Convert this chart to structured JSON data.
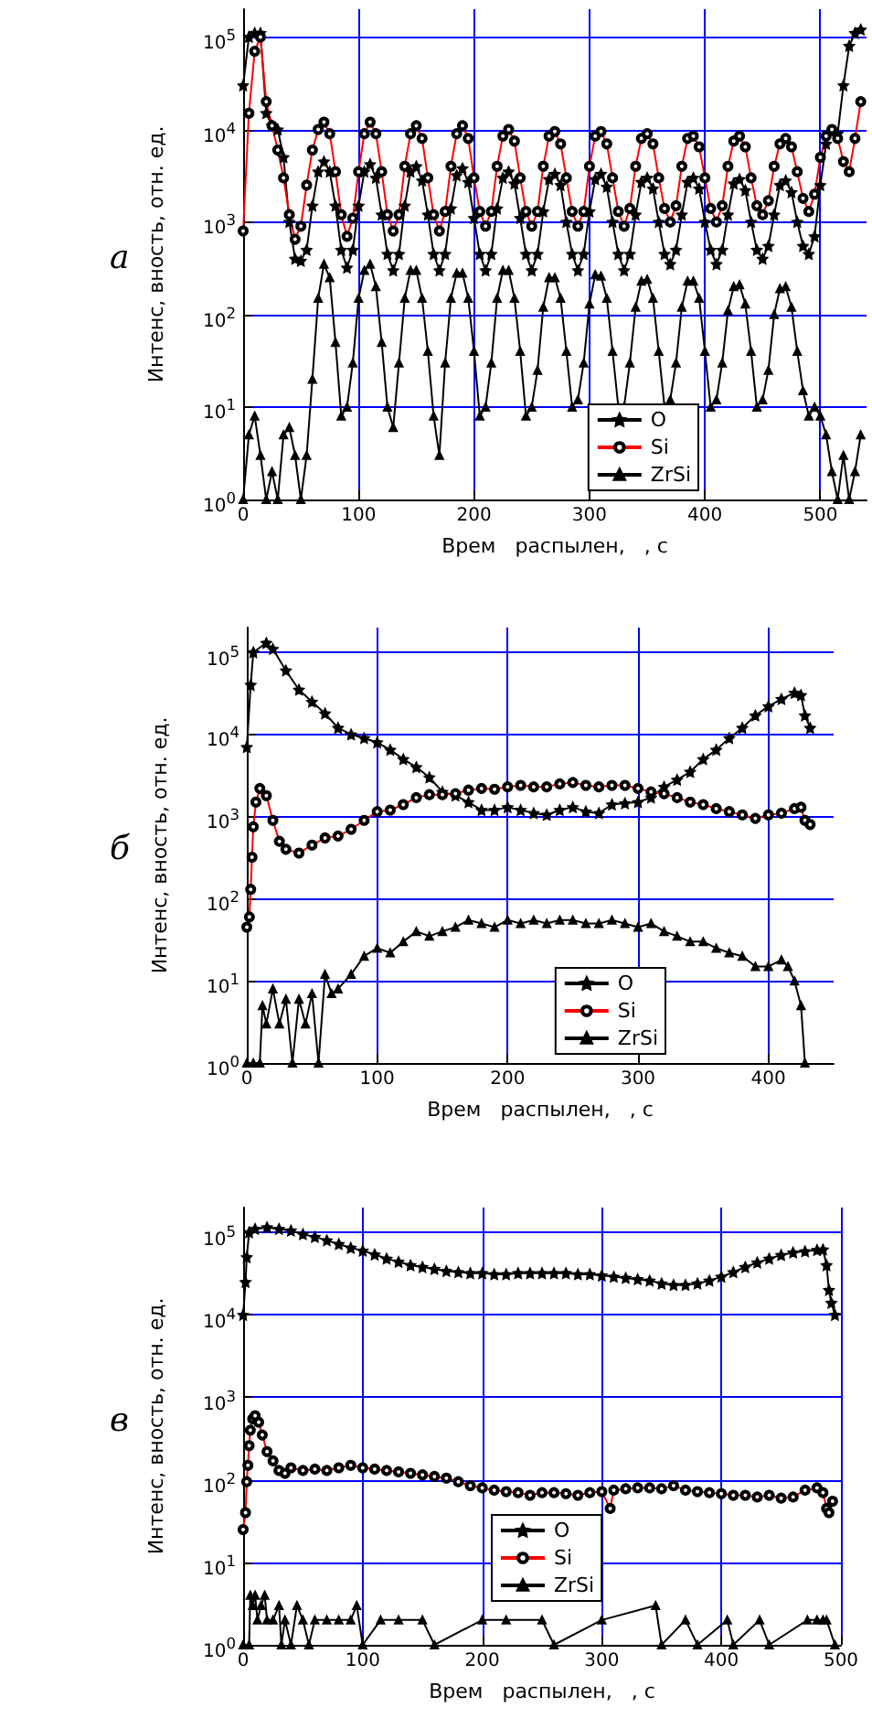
{
  "chart_data": [
    {
      "type": "line",
      "title": "а",
      "xlabel": "Врем   распылен,   , с",
      "ylabel": "Интенс, вность, отн. ед.",
      "log": "y",
      "grid": true,
      "legend": "bottom right",
      "xlim": [
        0,
        540
      ],
      "xticks": [
        0,
        100,
        200,
        300,
        400,
        500
      ],
      "ylim": [
        1,
        200000
      ],
      "yticks": [
        {
          "value": 1,
          "label": "10$^{0}$"
        },
        {
          "value": 10,
          "label": "10$^{1}$"
        },
        {
          "value": 100,
          "label": "10$^{2}$"
        },
        {
          "value": 1000,
          "label": "10$^{3}$"
        },
        {
          "value": 10000,
          "label": "10$^{4}$"
        },
        {
          "value": 100000,
          "label": "10$^{5}$"
        }
      ],
      "x": [
        0,
        5,
        10,
        15,
        20,
        25,
        30,
        35,
        40,
        45,
        50,
        55,
        60,
        65,
        70,
        75,
        80,
        85,
        90,
        95,
        100,
        105,
        110,
        115,
        120,
        125,
        130,
        135,
        140,
        145,
        150,
        155,
        160,
        165,
        170,
        175,
        180,
        185,
        190,
        195,
        200,
        205,
        210,
        215,
        220,
        225,
        230,
        235,
        240,
        245,
        250,
        255,
        260,
        265,
        270,
        275,
        280,
        285,
        290,
        295,
        300,
        305,
        310,
        315,
        320,
        325,
        330,
        335,
        340,
        345,
        350,
        355,
        360,
        365,
        370,
        375,
        380,
        385,
        390,
        395,
        400,
        405,
        410,
        415,
        420,
        425,
        430,
        435,
        440,
        445,
        450,
        455,
        460,
        465,
        470,
        475,
        480,
        485,
        490,
        495,
        500,
        505,
        510,
        515,
        520,
        525,
        530,
        535
      ],
      "series": [
        {
          "name": "O",
          "color": "#000000",
          "marker": "star",
          "values": [
            30000,
            100000,
            110000,
            110000,
            15000,
            11000,
            10000,
            5000,
            1000,
            400,
            380,
            500,
            1500,
            3500,
            4500,
            3500,
            1500,
            500,
            320,
            500,
            1500,
            3500,
            4200,
            3000,
            1200,
            450,
            300,
            450,
            1500,
            3500,
            4000,
            2800,
            1200,
            450,
            300,
            450,
            1400,
            3200,
            3800,
            2700,
            1100,
            450,
            300,
            450,
            1400,
            3000,
            3500,
            2600,
            1100,
            450,
            300,
            450,
            1300,
            2900,
            3300,
            2500,
            1000,
            450,
            300,
            450,
            1300,
            2900,
            3300,
            2400,
            1000,
            450,
            300,
            450,
            1200,
            2700,
            3000,
            2300,
            1000,
            450,
            350,
            500,
            1200,
            2700,
            3000,
            2300,
            1000,
            500,
            350,
            500,
            1200,
            2600,
            2900,
            2200,
            1000,
            500,
            400,
            550,
            1200,
            2500,
            2800,
            2100,
            1000,
            550,
            450,
            700,
            2500,
            7000,
            9500,
            9000,
            30000,
            80000,
            110000,
            120000
          ]
        },
        {
          "name": "Si",
          "color": "#ff0000",
          "marker": "circle",
          "values": [
            800,
            15000,
            70000,
            100000,
            20000,
            11000,
            6000,
            3000,
            1200,
            650,
            900,
            2500,
            6000,
            10000,
            12000,
            9000,
            3500,
            1200,
            700,
            1100,
            3500,
            9000,
            12000,
            9000,
            3500,
            1200,
            800,
            1200,
            4000,
            9000,
            11000,
            8000,
            3000,
            1200,
            800,
            1300,
            4000,
            9000,
            11000,
            8000,
            3000,
            1300,
            900,
            1300,
            4000,
            8500,
            10000,
            7500,
            3000,
            1300,
            900,
            1300,
            4000,
            8500,
            9500,
            7000,
            3000,
            1300,
            900,
            1300,
            4000,
            8500,
            9500,
            7000,
            3000,
            1300,
            900,
            1400,
            4000,
            8000,
            9000,
            7000,
            3000,
            1400,
            1000,
            1500,
            4000,
            8000,
            8500,
            6500,
            3000,
            1400,
            1000,
            1500,
            4000,
            7500,
            8500,
            6500,
            3000,
            1500,
            1200,
            1700,
            4000,
            7000,
            8000,
            6500,
            3500,
            1800,
            1300,
            2000,
            5000,
            8500,
            10000,
            8000,
            4500,
            3500,
            8000,
            20000
          ]
        },
        {
          "name": "ZrSi",
          "color": "#000000",
          "marker": "triangle",
          "values": [
            1,
            5,
            8,
            3,
            1,
            2,
            1,
            5,
            6,
            3,
            1,
            3,
            20,
            150,
            350,
            250,
            50,
            8,
            10,
            30,
            150,
            300,
            350,
            200,
            50,
            10,
            6,
            30,
            150,
            300,
            300,
            150,
            40,
            8,
            3,
            30,
            150,
            280,
            280,
            150,
            40,
            8,
            10,
            30,
            150,
            300,
            300,
            150,
            40,
            8,
            10,
            25,
            120,
            250,
            250,
            150,
            40,
            10,
            12,
            30,
            130,
            270,
            260,
            150,
            40,
            10,
            10,
            30,
            120,
            230,
            240,
            150,
            40,
            10,
            12,
            30,
            120,
            230,
            230,
            150,
            40,
            10,
            12,
            30,
            110,
            200,
            210,
            130,
            40,
            10,
            12,
            25,
            100,
            190,
            200,
            120,
            40,
            15,
            8,
            10,
            8,
            5,
            2,
            1,
            3,
            1,
            2,
            5
          ]
        }
      ]
    },
    {
      "type": "line",
      "title": "б",
      "xlabel": "Врем   распылен,   , с",
      "ylabel": "Интенс, вность, отн. ед.",
      "log": "y",
      "grid": true,
      "legend": "bottom right",
      "xlim": [
        0,
        450
      ],
      "xticks": [
        0,
        100,
        200,
        300,
        400
      ],
      "ylim": [
        1,
        200000
      ],
      "yticks": [
        {
          "value": 1,
          "label": "10$^{0}$"
        },
        {
          "value": 10,
          "label": "10$^{1}$"
        },
        {
          "value": 100,
          "label": "10$^{2}$"
        },
        {
          "value": 1000,
          "label": "10$^{3}$"
        },
        {
          "value": 10000,
          "label": "10$^{4}$"
        },
        {
          "value": 100000,
          "label": "10$^{5}$"
        }
      ],
      "series": [
        {
          "name": "O",
          "color": "#000000",
          "marker": "star",
          "x": [
            0,
            3,
            5,
            15,
            20,
            30,
            40,
            50,
            60,
            70,
            80,
            90,
            100,
            110,
            120,
            130,
            140,
            150,
            160,
            170,
            180,
            190,
            200,
            210,
            220,
            230,
            240,
            250,
            260,
            270,
            280,
            290,
            300,
            310,
            320,
            330,
            340,
            350,
            360,
            370,
            380,
            390,
            400,
            410,
            420,
            425,
            428,
            432
          ],
          "values": [
            7000,
            40000,
            100000,
            130000,
            110000,
            60000,
            35000,
            25000,
            18000,
            12000,
            10000,
            9000,
            8000,
            6500,
            5000,
            4000,
            3000,
            2000,
            1800,
            1500,
            1200,
            1200,
            1300,
            1200,
            1100,
            1050,
            1200,
            1300,
            1150,
            1100,
            1400,
            1450,
            1500,
            1700,
            2300,
            2800,
            3500,
            5000,
            6500,
            9000,
            12000,
            17000,
            22000,
            27000,
            32000,
            30000,
            17000,
            12000
          ]
        },
        {
          "name": "Si",
          "color": "#ff0000",
          "marker": "circle",
          "x": [
            0,
            2,
            3,
            4,
            5,
            7,
            10,
            15,
            20,
            25,
            30,
            40,
            50,
            60,
            70,
            80,
            90,
            100,
            110,
            120,
            130,
            140,
            150,
            160,
            170,
            180,
            190,
            200,
            210,
            220,
            230,
            240,
            250,
            260,
            270,
            280,
            290,
            300,
            310,
            320,
            330,
            340,
            350,
            360,
            370,
            380,
            390,
            400,
            410,
            420,
            425,
            428,
            432
          ],
          "values": [
            45,
            60,
            130,
            320,
            750,
            1500,
            2200,
            1800,
            900,
            500,
            400,
            360,
            450,
            550,
            580,
            700,
            900,
            1150,
            1200,
            1400,
            1700,
            1850,
            1850,
            1900,
            2100,
            2200,
            2150,
            2300,
            2400,
            2300,
            2300,
            2500,
            2600,
            2400,
            2300,
            2400,
            2400,
            2200,
            2000,
            1900,
            1700,
            1500,
            1400,
            1250,
            1150,
            1050,
            950,
            1050,
            1100,
            1250,
            1300,
            900,
            800
          ]
        },
        {
          "name": "ZrSi",
          "color": "#000000",
          "marker": "triangle",
          "x": [
            0,
            5,
            10,
            12,
            15,
            20,
            25,
            30,
            35,
            40,
            45,
            50,
            55,
            60,
            65,
            70,
            80,
            90,
            100,
            110,
            120,
            130,
            140,
            150,
            160,
            170,
            180,
            190,
            200,
            210,
            220,
            230,
            240,
            250,
            260,
            270,
            280,
            290,
            300,
            310,
            320,
            330,
            340,
            350,
            360,
            370,
            380,
            390,
            400,
            410,
            415,
            420,
            425,
            428
          ],
          "values": [
            1,
            1,
            1,
            5,
            3,
            8,
            3,
            6,
            1,
            6,
            3,
            7,
            1,
            12,
            7,
            8,
            12,
            20,
            25,
            22,
            30,
            40,
            35,
            40,
            45,
            55,
            50,
            45,
            55,
            50,
            55,
            50,
            55,
            55,
            50,
            50,
            55,
            50,
            45,
            50,
            40,
            35,
            30,
            30,
            25,
            22,
            20,
            15,
            15,
            18,
            15,
            10,
            5,
            1
          ]
        }
      ]
    },
    {
      "type": "line",
      "title": "в",
      "xlabel": "Врем   распылен,   , с",
      "ylabel": "Интенс, вность, отн. ед.",
      "log": "y",
      "grid": true,
      "legend": "bottom",
      "xlim": [
        0,
        500
      ],
      "xticks": [
        0,
        100,
        200,
        300,
        400,
        500
      ],
      "ylim": [
        1,
        200000
      ],
      "yticks": [
        {
          "value": 1,
          "label": "10$^{0}$"
        },
        {
          "value": 10,
          "label": "10$^{1}$"
        },
        {
          "value": 100,
          "label": "10$^{2}$"
        },
        {
          "value": 1000,
          "label": "10$^{3}$"
        },
        {
          "value": 10000,
          "label": "10$^{4}$"
        },
        {
          "value": 100000,
          "label": "10$^{5}$"
        }
      ],
      "series": [
        {
          "name": "O",
          "color": "#000000",
          "marker": "star",
          "x": [
            0,
            2,
            3,
            5,
            10,
            20,
            30,
            40,
            50,
            60,
            70,
            80,
            90,
            100,
            110,
            120,
            130,
            140,
            150,
            160,
            170,
            180,
            190,
            200,
            210,
            220,
            230,
            240,
            250,
            260,
            270,
            280,
            290,
            300,
            310,
            320,
            330,
            340,
            350,
            360,
            370,
            380,
            390,
            400,
            410,
            420,
            430,
            440,
            450,
            460,
            470,
            480,
            485,
            488,
            490,
            492,
            495
          ],
          "values": [
            10000,
            25000,
            50000,
            100000,
            110000,
            115000,
            110000,
            105000,
            95000,
            88000,
            80000,
            72000,
            65000,
            60000,
            54000,
            48000,
            44000,
            40000,
            38000,
            36000,
            34000,
            33000,
            32000,
            32000,
            31000,
            31000,
            32000,
            32000,
            32000,
            32000,
            32000,
            31000,
            31000,
            30000,
            29000,
            28000,
            27000,
            26000,
            24000,
            23000,
            23000,
            24000,
            26000,
            29000,
            33000,
            38000,
            43000,
            48000,
            53000,
            57000,
            59000,
            61000,
            62000,
            40000,
            20000,
            14000,
            10000
          ]
        },
        {
          "name": "Si",
          "color": "#ff0000",
          "marker": "circle",
          "x": [
            0,
            2,
            3,
            4,
            5,
            6,
            8,
            10,
            13,
            16,
            20,
            25,
            30,
            35,
            40,
            50,
            60,
            70,
            80,
            90,
            100,
            110,
            120,
            130,
            140,
            150,
            160,
            170,
            180,
            190,
            200,
            210,
            220,
            230,
            240,
            250,
            260,
            270,
            280,
            290,
            300,
            307,
            310,
            320,
            330,
            340,
            350,
            360,
            370,
            380,
            390,
            400,
            410,
            420,
            430,
            440,
            450,
            460,
            470,
            480,
            485,
            488,
            490,
            493
          ],
          "values": [
            25,
            40,
            95,
            150,
            260,
            400,
            550,
            600,
            500,
            350,
            220,
            170,
            130,
            120,
            140,
            130,
            135,
            130,
            140,
            150,
            140,
            135,
            130,
            125,
            120,
            115,
            110,
            105,
            95,
            85,
            80,
            75,
            72,
            70,
            65,
            70,
            70,
            68,
            65,
            70,
            72,
            45,
            75,
            78,
            80,
            80,
            78,
            85,
            75,
            72,
            70,
            68,
            65,
            65,
            62,
            65,
            60,
            62,
            75,
            80,
            70,
            45,
            40,
            55
          ]
        },
        {
          "name": "ZrSi",
          "color": "#000000",
          "marker": "triangle",
          "x": [
            0,
            5,
            6,
            8,
            10,
            12,
            15,
            18,
            20,
            25,
            30,
            32,
            35,
            40,
            45,
            50,
            55,
            60,
            70,
            80,
            90,
            95,
            100,
            115,
            130,
            150,
            160,
            200,
            220,
            250,
            260,
            300,
            345,
            350,
            370,
            380,
            405,
            410,
            432,
            440,
            472,
            480,
            485,
            488,
            495
          ],
          "values": [
            1,
            1,
            4,
            3,
            4,
            2,
            3,
            4,
            2,
            2,
            3,
            1,
            2,
            1,
            3,
            2,
            1,
            2,
            2,
            2,
            2,
            3,
            1,
            2,
            2,
            2,
            1,
            2,
            2,
            2,
            1,
            2,
            3,
            1,
            2,
            1,
            2,
            1,
            2,
            1,
            2,
            2,
            2,
            2,
            1
          ]
        }
      ]
    }
  ]
}
